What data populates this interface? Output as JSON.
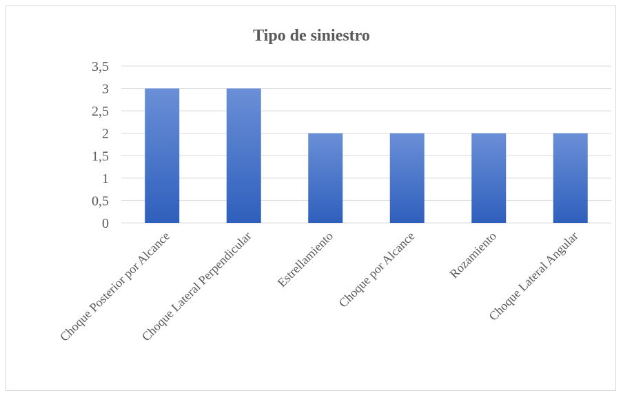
{
  "chart_data": {
    "type": "bar",
    "title": "Tipo de siniestro",
    "categories": [
      "Choque Posterior por Alcance",
      "Choque Lateral Perpendicular",
      "Estrellamiento",
      "Choque por Alcance",
      "Rozamiento",
      "Choque Lateral Angular"
    ],
    "values": [
      3,
      3,
      2,
      2,
      2,
      2
    ],
    "ylim": [
      0,
      3.5
    ],
    "yticks": [
      "0",
      "0,5",
      "1",
      "1,5",
      "2",
      "2,5",
      "3",
      "3,5"
    ],
    "grid": true,
    "legend": "none",
    "bar_color": "#4472c4"
  }
}
